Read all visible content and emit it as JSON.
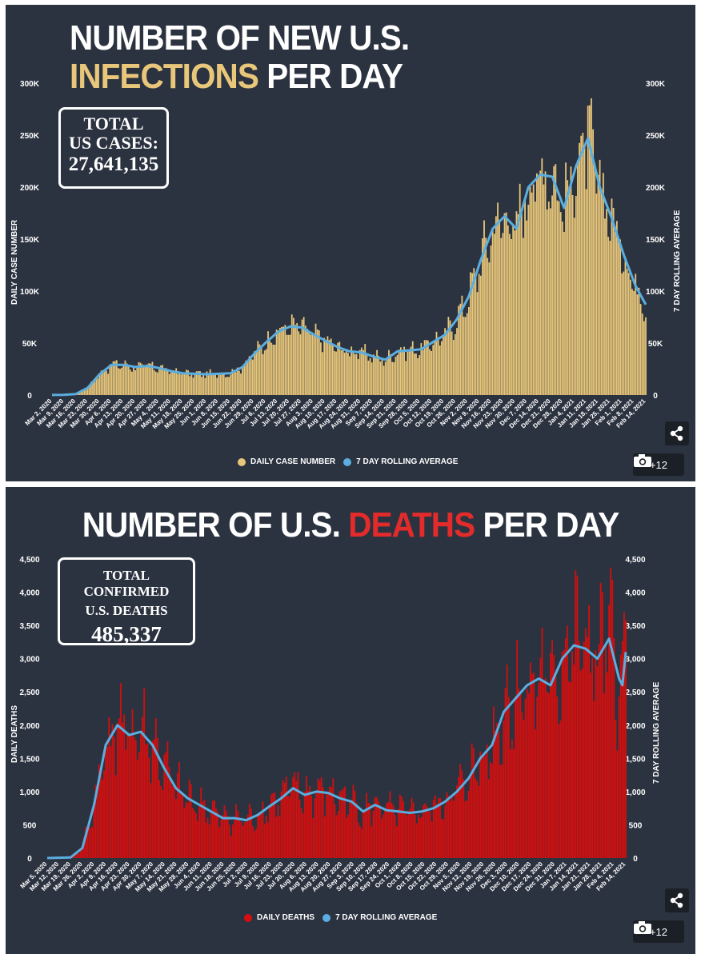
{
  "charts": [
    {
      "title_parts": [
        {
          "text": "NUMBER OF NEW U.S.",
          "color": "#ffffff",
          "break": true
        },
        {
          "text": "INFECTIONS",
          "color": "#e9c77a"
        },
        {
          "text": " PER DAY",
          "color": "#ffffff"
        }
      ],
      "box": {
        "line1": "TOTAL",
        "line2": "US CASES:",
        "value": "27,641,135"
      },
      "legend": [
        "DAILY CASE NUMBER",
        "7 DAY ROLLING AVERAGE"
      ],
      "share_icon": "share-icon",
      "gallery": {
        "icon": "camera-icon",
        "count": "+12"
      }
    },
    {
      "title_parts": [
        {
          "text": "NUMBER OF U.S. ",
          "color": "#ffffff"
        },
        {
          "text": "DEATHS",
          "color": "#e42b2b"
        },
        {
          "text": " PER DAY",
          "color": "#ffffff"
        }
      ],
      "box": {
        "line1": "TOTAL CONFIRMED",
        "line2": "U.S. DEATHS",
        "value": "485,337"
      },
      "legend": [
        "DAILY DEATHS",
        "7 DAY ROLLING AVERAGE"
      ],
      "share_icon": "share-icon",
      "gallery": {
        "icon": "camera-icon",
        "count": "+12"
      }
    }
  ],
  "chart_data": [
    {
      "type": "bar",
      "title": "NUMBER OF NEW U.S. INFECTIONS PER DAY",
      "ylabel": "DAILY CASE NUMBER",
      "y2label": "7 DAY ROLLING AVERAGE",
      "ylim": [
        0,
        300000
      ],
      "yticks": [
        "0",
        "50K",
        "100K",
        "150K",
        "200K",
        "250K",
        "300K"
      ],
      "x_start": "2020-03-02",
      "x_end": "2021-02-14",
      "x_tick_labels": [
        "Mar 2, 2020",
        "Mar 9, 2020",
        "Mar 16, 2020",
        "Mar 23, 2020",
        "Mar 30, 2020",
        "Apr 6, 2020",
        "Apr 13, 2020",
        "Apr 20, 2020",
        "Apr 27, 2020",
        "May 4, 2020",
        "May 11, 2020",
        "May 18, 2020",
        "May 25, 2020",
        "Jun 1, 2020",
        "Jun 8, 2020",
        "Jun 15, 2020",
        "Jun 22, 2020",
        "Jun 29, 2020",
        "Jul 6, 2020",
        "Jul 13, 2020",
        "Jul 20, 2020",
        "Jul 27, 2020",
        "Aug 3, 2020",
        "Aug 10, 2020",
        "Aug 17, 2020",
        "Aug 24, 2020",
        "Aug 31, 2020",
        "Sep 7, 2020",
        "Sep 14, 2020",
        "Sep 21, 2020",
        "Sep 28, 2020",
        "Oct 5, 2020",
        "Oct 12, 2020",
        "Oct 19, 2020",
        "Oct 26, 2020",
        "Nov 2, 2020",
        "Nov 9, 2020",
        "Nov 16, 2020",
        "Nov 23, 2020",
        "Nov 30, 2020",
        "Dec 7, 2020",
        "Dec 14, 2020",
        "Dec 21, 2020",
        "Dec 28, 2020",
        "Jan 4, 2021",
        "Jan 11, 2021",
        "Jan 18, 2021",
        "Jan 25, 2021",
        "Feb 1, 2021",
        "Feb 8, 2021",
        "Feb 14, 2021"
      ],
      "series": [
        {
          "name": "DAILY CASE NUMBER",
          "color": "#e9c77a",
          "kind": "bar"
        },
        {
          "name": "7 DAY ROLLING AVERAGE",
          "color": "#5aaee0",
          "kind": "line"
        }
      ],
      "rolling_average": [
        [
          "2020-03-02",
          50
        ],
        [
          "2020-03-09",
          150
        ],
        [
          "2020-03-16",
          1000
        ],
        [
          "2020-03-23",
          7000
        ],
        [
          "2020-03-30",
          20000
        ],
        [
          "2020-04-06",
          29000
        ],
        [
          "2020-04-13",
          29000
        ],
        [
          "2020-04-20",
          27000
        ],
        [
          "2020-04-27",
          28000
        ],
        [
          "2020-05-04",
          26000
        ],
        [
          "2020-05-11",
          23000
        ],
        [
          "2020-05-18",
          21000
        ],
        [
          "2020-05-25",
          20500
        ],
        [
          "2020-06-01",
          20000
        ],
        [
          "2020-06-08",
          20500
        ],
        [
          "2020-06-15",
          21000
        ],
        [
          "2020-06-22",
          27000
        ],
        [
          "2020-06-29",
          40000
        ],
        [
          "2020-07-06",
          51000
        ],
        [
          "2020-07-13",
          61000
        ],
        [
          "2020-07-20",
          66000
        ],
        [
          "2020-07-27",
          65000
        ],
        [
          "2020-08-03",
          58000
        ],
        [
          "2020-08-10",
          52000
        ],
        [
          "2020-08-17",
          46000
        ],
        [
          "2020-08-24",
          42000
        ],
        [
          "2020-08-31",
          41000
        ],
        [
          "2020-09-07",
          37000
        ],
        [
          "2020-09-14",
          34000
        ],
        [
          "2020-09-21",
          42000
        ],
        [
          "2020-09-28",
          43000
        ],
        [
          "2020-10-05",
          44000
        ],
        [
          "2020-10-12",
          51000
        ],
        [
          "2020-10-19",
          58000
        ],
        [
          "2020-10-26",
          73000
        ],
        [
          "2020-11-02",
          95000
        ],
        [
          "2020-11-09",
          130000
        ],
        [
          "2020-11-16",
          160000
        ],
        [
          "2020-11-23",
          172000
        ],
        [
          "2020-11-30",
          160000
        ],
        [
          "2020-12-07",
          200000
        ],
        [
          "2020-12-14",
          212000
        ],
        [
          "2020-12-21",
          210000
        ],
        [
          "2020-12-28",
          180000
        ],
        [
          "2021-01-04",
          220000
        ],
        [
          "2021-01-11",
          247000
        ],
        [
          "2021-01-18",
          200000
        ],
        [
          "2021-01-25",
          170000
        ],
        [
          "2021-02-01",
          135000
        ],
        [
          "2021-02-08",
          105000
        ],
        [
          "2021-02-14",
          87000
        ]
      ]
    },
    {
      "type": "bar",
      "title": "NUMBER OF U.S. DEATHS PER DAY",
      "ylabel": "DAILY DEATHS",
      "y2label": "7 DAY ROLLING AVERAGE",
      "ylim": [
        0,
        4500
      ],
      "yticks": [
        "0",
        "500",
        "1,000",
        "1,500",
        "2,000",
        "2,500",
        "3,000",
        "3,500",
        "4,000",
        "4,500"
      ],
      "x_start": "2020-03-05",
      "x_end": "2021-02-14",
      "x_tick_labels": [
        "Mar 5, 2020",
        "Mar 12, 2020",
        "Mar 19, 2020",
        "Mar 26, 2020",
        "Apr 2, 2020",
        "Apr 9, 2020",
        "Apr 16, 2020",
        "Apr 23, 2020",
        "Apr 30, 2020",
        "May 7, 2020",
        "May 14, 2020",
        "May 21, 2020",
        "May 28, 2020",
        "Jun 4, 2020",
        "Jun 11, 2020",
        "Jun 18, 2020",
        "Jun 25, 2020",
        "Jul 2, 2020",
        "Jul 9, 2020",
        "Jul 16, 2020",
        "Jul 23, 2020",
        "Jul 30, 2020",
        "Aug 6, 2020",
        "Aug 13, 2020",
        "Aug 20, 2020",
        "Aug 27, 2020",
        "Sep 3, 2020",
        "Sep 10, 2020",
        "Sep 17, 2020",
        "Sep 24, 2020",
        "Oct 1, 2020",
        "Oct 8, 2020",
        "Oct 15, 2020",
        "Oct 22, 2020",
        "Oct 29, 2020",
        "Nov 5, 2020",
        "Nov 12, 2020",
        "Nov 19, 2020",
        "Nov 26, 2020",
        "Dec 3, 2020",
        "Dec 10, 2020",
        "Dec 17, 2020",
        "Dec 24, 2020",
        "Dec 31, 2020",
        "Jan 7, 2021",
        "Jan 14, 2021",
        "Jan 21, 2021",
        "Jan 28, 2021",
        "Feb 4, 2021",
        "Feb 14, 2021"
      ],
      "series": [
        {
          "name": "DAILY DEATHS",
          "color": "#d60e0e",
          "kind": "bar"
        },
        {
          "name": "7 DAY ROLLING AVERAGE",
          "color": "#5aaee0",
          "kind": "line"
        }
      ],
      "rolling_average": [
        [
          "2020-03-05",
          0
        ],
        [
          "2020-03-19",
          10
        ],
        [
          "2020-03-26",
          150
        ],
        [
          "2020-04-02",
          800
        ],
        [
          "2020-04-09",
          1700
        ],
        [
          "2020-04-16",
          2000
        ],
        [
          "2020-04-23",
          1850
        ],
        [
          "2020-04-30",
          1900
        ],
        [
          "2020-05-07",
          1700
        ],
        [
          "2020-05-14",
          1350
        ],
        [
          "2020-05-21",
          1050
        ],
        [
          "2020-05-28",
          900
        ],
        [
          "2020-06-04",
          800
        ],
        [
          "2020-06-11",
          700
        ],
        [
          "2020-06-18",
          600
        ],
        [
          "2020-06-25",
          600
        ],
        [
          "2020-07-02",
          570
        ],
        [
          "2020-07-09",
          650
        ],
        [
          "2020-07-16",
          780
        ],
        [
          "2020-07-23",
          900
        ],
        [
          "2020-07-30",
          1050
        ],
        [
          "2020-08-06",
          950
        ],
        [
          "2020-08-13",
          1000
        ],
        [
          "2020-08-20",
          980
        ],
        [
          "2020-08-27",
          900
        ],
        [
          "2020-09-03",
          850
        ],
        [
          "2020-09-10",
          700
        ],
        [
          "2020-09-17",
          800
        ],
        [
          "2020-09-24",
          720
        ],
        [
          "2020-10-01",
          700
        ],
        [
          "2020-10-08",
          680
        ],
        [
          "2020-10-15",
          700
        ],
        [
          "2020-10-22",
          750
        ],
        [
          "2020-10-29",
          850
        ],
        [
          "2020-11-05",
          1000
        ],
        [
          "2020-11-12",
          1200
        ],
        [
          "2020-11-19",
          1500
        ],
        [
          "2020-11-26",
          1700
        ],
        [
          "2020-12-03",
          2200
        ],
        [
          "2020-12-10",
          2400
        ],
        [
          "2020-12-17",
          2600
        ],
        [
          "2020-12-24",
          2700
        ],
        [
          "2020-12-31",
          2600
        ],
        [
          "2021-01-07",
          3000
        ],
        [
          "2021-01-14",
          3200
        ],
        [
          "2021-01-21",
          3150
        ],
        [
          "2021-01-28",
          3000
        ],
        [
          "2021-02-04",
          3300
        ],
        [
          "2021-02-10",
          2700
        ],
        [
          "2021-02-12",
          2600
        ],
        [
          "2021-02-14",
          3100
        ]
      ]
    }
  ]
}
